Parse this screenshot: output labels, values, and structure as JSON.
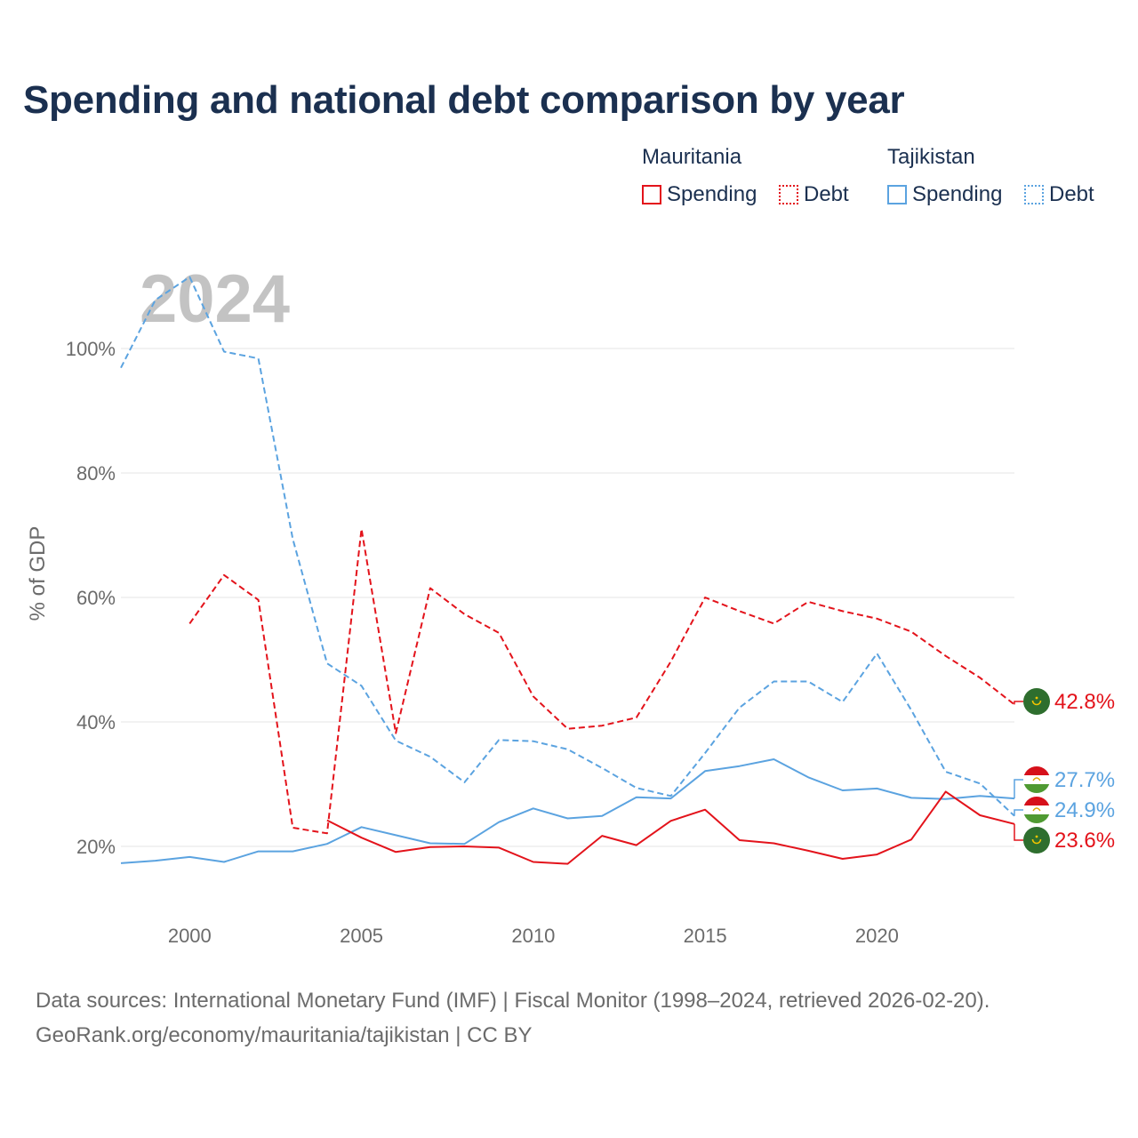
{
  "title": "Spending and national debt comparison by year",
  "legend": {
    "groups": [
      {
        "name": "Mauritania",
        "spending_label": "Spending",
        "debt_label": "Debt",
        "color": "#e3131b"
      },
      {
        "name": "Tajikistan",
        "spending_label": "Spending",
        "debt_label": "Debt",
        "color": "#5ba3e0"
      }
    ]
  },
  "sources": {
    "line1": "Data sources: International Monetary Fund (IMF) | Fiscal Monitor (1998–2024, retrieved 2026-02-20).",
    "line2": "GeoRank.org/economy/mauritania/tajikistan | CC BY"
  },
  "chart_data": {
    "type": "line",
    "title": "Spending and national debt comparison by year",
    "watermark_year": "2024",
    "xlabel": "",
    "ylabel": "% of GDP",
    "xlim": [
      1998,
      2024
    ],
    "ylim": [
      10,
      115
    ],
    "x_ticks": [
      {
        "value": 2000,
        "label": "2000"
      },
      {
        "value": 2005,
        "label": "2005"
      },
      {
        "value": 2010,
        "label": "2010"
      },
      {
        "value": 2015,
        "label": "2015"
      },
      {
        "value": 2020,
        "label": "2020"
      }
    ],
    "y_ticks": [
      {
        "value": 20,
        "label": "20%"
      },
      {
        "value": 40,
        "label": "40%"
      },
      {
        "value": 60,
        "label": "60%"
      },
      {
        "value": 80,
        "label": "80%"
      },
      {
        "value": 100,
        "label": "100%"
      }
    ],
    "grid": true,
    "series": [
      {
        "name": "Tajikistan Debt",
        "country": "Tajikistan",
        "metric": "Debt",
        "color": "#5ba3e0",
        "style": "dashed",
        "x": [
          1998,
          1999,
          2000,
          2001,
          2002,
          2003,
          2004,
          2005,
          2006,
          2007,
          2008,
          2009,
          2010,
          2011,
          2012,
          2013,
          2014,
          2015,
          2016,
          2017,
          2018,
          2019,
          2020,
          2021,
          2022,
          2023,
          2024
        ],
        "values": [
          96.9,
          107.8,
          111.5,
          99.5,
          98.4,
          69.4,
          49.4,
          45.8,
          37.0,
          34.4,
          30.3,
          37.1,
          36.9,
          35.6,
          32.6,
          29.4,
          28.1,
          35.0,
          42.3,
          46.5,
          46.5,
          43.2,
          51.0,
          41.9,
          32.0,
          30.1,
          24.9
        ],
        "end_label": "24.9%"
      },
      {
        "name": "Mauritania Debt",
        "country": "Mauritania",
        "metric": "Debt",
        "color": "#e3131b",
        "style": "dashed",
        "x": [
          2000,
          2001,
          2002,
          2003,
          2004,
          2005,
          2006,
          2007,
          2008,
          2009,
          2010,
          2011,
          2012,
          2013,
          2014,
          2015,
          2016,
          2017,
          2018,
          2019,
          2020,
          2021,
          2022,
          2023,
          2024
        ],
        "values": [
          55.8,
          63.6,
          59.6,
          23.0,
          22.1,
          71.0,
          38.2,
          61.5,
          57.3,
          54.3,
          44.1,
          38.9,
          39.4,
          40.7,
          49.7,
          60.0,
          57.8,
          55.8,
          59.3,
          57.8,
          56.6,
          54.5,
          50.6,
          47.1,
          42.8
        ],
        "end_label": "42.8%"
      },
      {
        "name": "Tajikistan Spending",
        "country": "Tajikistan",
        "metric": "Spending",
        "color": "#5ba3e0",
        "style": "solid",
        "x": [
          1998,
          1999,
          2000,
          2001,
          2002,
          2003,
          2004,
          2005,
          2006,
          2007,
          2008,
          2009,
          2010,
          2011,
          2012,
          2013,
          2014,
          2015,
          2016,
          2017,
          2018,
          2019,
          2020,
          2021,
          2022,
          2023,
          2024
        ],
        "values": [
          17.3,
          17.7,
          18.3,
          17.5,
          19.2,
          19.2,
          20.4,
          23.1,
          21.8,
          20.5,
          20.4,
          23.9,
          26.1,
          24.5,
          24.9,
          27.9,
          27.7,
          32.1,
          32.9,
          34.0,
          31.1,
          29.0,
          29.3,
          27.8,
          27.6,
          28.1,
          27.7
        ],
        "end_label": "27.7%"
      },
      {
        "name": "Mauritania Spending",
        "country": "Mauritania",
        "metric": "Spending",
        "color": "#e3131b",
        "style": "solid",
        "x": [
          2004,
          2005,
          2006,
          2007,
          2008,
          2009,
          2010,
          2011,
          2012,
          2013,
          2014,
          2015,
          2016,
          2017,
          2018,
          2019,
          2020,
          2021,
          2022,
          2023,
          2024
        ],
        "values": [
          24.2,
          21.4,
          19.1,
          19.9,
          20.0,
          19.8,
          17.5,
          17.2,
          21.7,
          20.2,
          24.1,
          25.9,
          21.0,
          20.5,
          19.3,
          18.0,
          18.7,
          21.1,
          28.8,
          25.0,
          23.6
        ],
        "end_label": "23.6%"
      }
    ]
  }
}
